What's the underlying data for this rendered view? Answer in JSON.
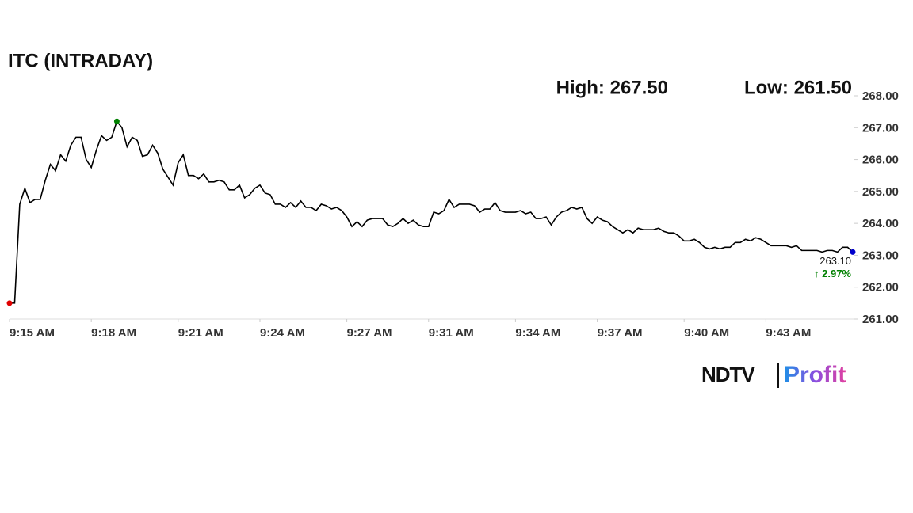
{
  "chart_data": {
    "type": "line",
    "title": "ITC (INTRADAY)",
    "high_label": "High: 267.50",
    "low_label": "Low: 261.50",
    "last_label": "263.10",
    "change_label": "↑ 2.97%",
    "brand": "NDTV",
    "brand_sub": "Profit",
    "color": "#000000",
    "low_color": "#e00000",
    "high_color": "#008000",
    "last_color": "#0000cc",
    "change_color": "#008000",
    "values": [
      261.5,
      261.5,
      264.6,
      265.1,
      264.65,
      264.75,
      264.75,
      265.35,
      265.85,
      265.65,
      266.15,
      265.95,
      266.45,
      266.7,
      266.7,
      266.0,
      265.75,
      266.3,
      266.75,
      266.6,
      266.7,
      267.2,
      267.0,
      266.4,
      266.7,
      266.6,
      266.1,
      266.15,
      266.45,
      266.2,
      265.7,
      265.45,
      265.2,
      265.9,
      266.15,
      265.5,
      265.5,
      265.4,
      265.55,
      265.3,
      265.3,
      265.35,
      265.3,
      265.05,
      265.05,
      265.2,
      264.8,
      264.9,
      265.1,
      265.2,
      264.95,
      264.9,
      264.6,
      264.6,
      264.5,
      264.65,
      264.5,
      264.7,
      264.5,
      264.5,
      264.4,
      264.6,
      264.55,
      264.45,
      264.5,
      264.4,
      264.2,
      263.9,
      264.05,
      263.9,
      264.1,
      264.15,
      264.15,
      264.15,
      263.95,
      263.9,
      264.0,
      264.15,
      264.0,
      264.1,
      263.95,
      263.9,
      263.9,
      264.35,
      264.3,
      264.4,
      264.75,
      264.5,
      264.6,
      264.6,
      264.6,
      264.55,
      264.35,
      264.45,
      264.45,
      264.65,
      264.4,
      264.35,
      264.35,
      264.35,
      264.4,
      264.3,
      264.35,
      264.15,
      264.15,
      264.2,
      263.95,
      264.2,
      264.35,
      264.4,
      264.5,
      264.45,
      264.5,
      264.15,
      264.0,
      264.2,
      264.1,
      264.05,
      263.9,
      263.8,
      263.7,
      263.8,
      263.7,
      263.85,
      263.8,
      263.8,
      263.8,
      263.85,
      263.75,
      263.7,
      263.7,
      263.6,
      263.45,
      263.45,
      263.5,
      263.4,
      263.25,
      263.2,
      263.25,
      263.2,
      263.25,
      263.25,
      263.4,
      263.4,
      263.5,
      263.45,
      263.55,
      263.5,
      263.4,
      263.3,
      263.3,
      263.3,
      263.3,
      263.25,
      263.3,
      263.15,
      263.15,
      263.15,
      263.15,
      263.1,
      263.15,
      263.15,
      263.1,
      263.25,
      263.25,
      263.1
    ],
    "xlim": [
      0,
      165
    ],
    "xticks": [
      {
        "value": 0,
        "label": "9:15 AM"
      },
      {
        "value": 16,
        "label": "9:18 AM"
      },
      {
        "value": 33,
        "label": "9:21 AM"
      },
      {
        "value": 49,
        "label": "9:24 AM"
      },
      {
        "value": 66,
        "label": "9:27 AM"
      },
      {
        "value": 82,
        "label": "9:31 AM"
      },
      {
        "value": 99,
        "label": "9:34 AM"
      },
      {
        "value": 115,
        "label": "9:37 AM"
      },
      {
        "value": 132,
        "label": "9:40 AM"
      },
      {
        "value": 148,
        "label": "9:43 AM"
      }
    ],
    "ylim": [
      261,
      268
    ],
    "yticks": [
      {
        "value": 261,
        "label": "261.00"
      },
      {
        "value": 262,
        "label": "262.00"
      },
      {
        "value": 263,
        "label": "263.00"
      },
      {
        "value": 264,
        "label": "264.00"
      },
      {
        "value": 265,
        "label": "265.00"
      },
      {
        "value": 266,
        "label": "266.00"
      },
      {
        "value": 267,
        "label": "267.00"
      },
      {
        "value": 268,
        "label": "268.00"
      }
    ]
  }
}
